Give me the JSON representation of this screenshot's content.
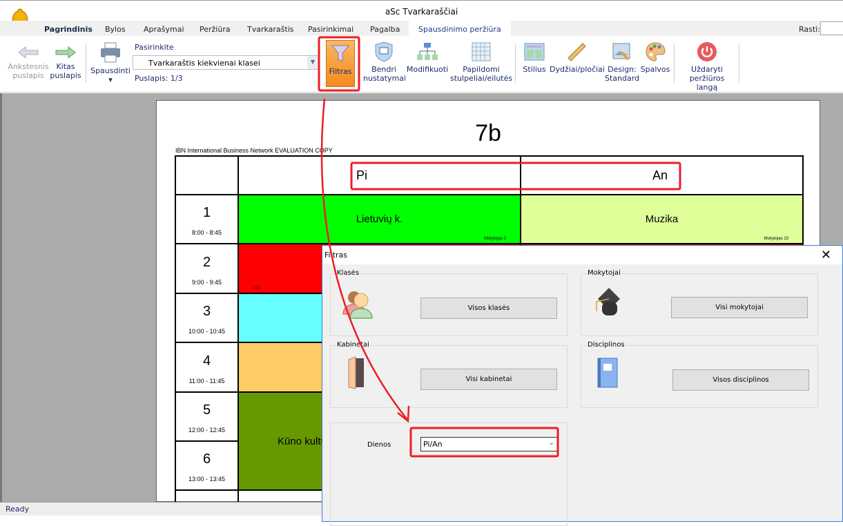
{
  "app": {
    "title": "aSc Tvarkaraščiai",
    "logo_icon": "bell-icon"
  },
  "tabs": [
    "Pagrindinis",
    "Bylos",
    "Aprašymai",
    "Peržiūra",
    "Tvarkaraštis",
    "Pasirinkimai",
    "Pagalba",
    "Spausdinimo peržiūra"
  ],
  "active_tab": "Spausdinimo peržiūra",
  "search": {
    "label": "Rasti:",
    "value": ""
  },
  "ribbon": {
    "prev": "Ankstesnis puslapis",
    "next": "Kitas puslapis",
    "print": "Spausdinti",
    "select_label": "Pasirinkite",
    "select_value": "Tvarkaraštis kiekvienai klasei",
    "page": "Puslapis: 1/3",
    "filter": "Filtras",
    "general": "Bendri nustatymai",
    "modify": "Modifikuoti",
    "extra": "Papildomi stulpeliai/eilutės",
    "style": "Stilius",
    "sizes": "Dydžiai/pločiai",
    "design": "Design: Standard",
    "colors": "Spalvos",
    "close": "Uždaryti peržiūros langą"
  },
  "preview": {
    "class_title": "7b",
    "watermark": "IBN International Business Network EVALUATION COPY",
    "days": [
      "Pi",
      "An"
    ],
    "periods": [
      {
        "n": "1",
        "t": "8:00 - 8:45"
      },
      {
        "n": "2",
        "t": "9:00 - 9:45"
      },
      {
        "n": "3",
        "t": "10:00 - 10:45"
      },
      {
        "n": "4",
        "t": "11:00 - 11:45"
      },
      {
        "n": "5",
        "t": "12:00 - 12:45"
      },
      {
        "n": "6",
        "t": "13:00 - 13:45"
      }
    ],
    "lessons": {
      "p1_pi": "Lietuvių k.",
      "p1_pi_teacher": "Mokytojas 2",
      "p1_an": "Muzika",
      "p1_an_teacher": "Mokytojas 23",
      "p2_pi_room": "102",
      "p56_pi": "Kūno kultū"
    },
    "colors": {
      "green": "#00ff00",
      "lightgreen": "#dfff99",
      "red": "#ff0000",
      "cyan": "#66ffff",
      "orange": "#ffcc66",
      "olive": "#669900"
    }
  },
  "status": "Ready",
  "dialog": {
    "title": "Filtras",
    "groups": {
      "classes": "Klasės",
      "teachers": "Mokytojai",
      "rooms": "Kabinetai",
      "subjects": "Disciplinos"
    },
    "buttons": {
      "classes": "Visos klasės",
      "teachers": "Visi mokytojai",
      "rooms": "Visi kabinetai",
      "subjects": "Visos disciplinos"
    },
    "days_label": "Dienos",
    "days_value": "Pi/An"
  },
  "annotation_color": "#ee1c25"
}
